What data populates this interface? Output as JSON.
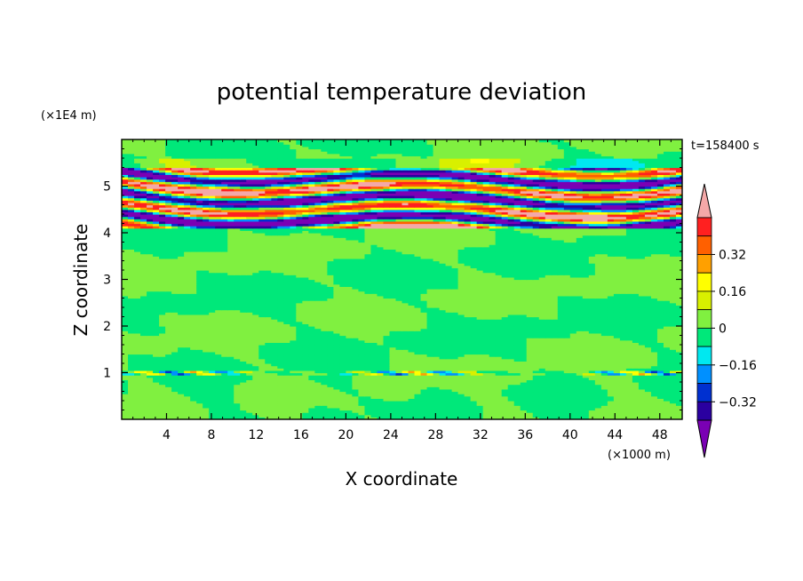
{
  "chart_data": {
    "type": "heatmap",
    "title": "potential temperature deviation",
    "xlabel": "X coordinate",
    "ylabel": "Z coordinate",
    "x_unit": "(×1000 m)",
    "y_unit": "(×1E4 m)",
    "time_label": "t=158400 s",
    "xlim": [
      0,
      50
    ],
    "ylim": [
      0,
      6
    ],
    "x_ticks": [
      4,
      8,
      12,
      16,
      20,
      24,
      28,
      32,
      36,
      40,
      44,
      48
    ],
    "y_ticks": [
      1,
      2,
      3,
      4,
      5
    ],
    "x_tick_labels": [
      "4",
      "8",
      "12",
      "16",
      "20",
      "24",
      "28",
      "32",
      "36",
      "40",
      "44",
      "48"
    ],
    "y_tick_labels": [
      "1",
      "2",
      "3",
      "4",
      "5"
    ],
    "colorbar": {
      "levels": [
        -0.48,
        -0.4,
        -0.32,
        -0.24,
        -0.16,
        -0.08,
        0,
        0.08,
        0.16,
        0.24,
        0.32,
        0.4,
        0.48
      ],
      "labeled_levels": [
        0.32,
        0.16,
        0,
        -0.16,
        -0.32
      ],
      "labels": [
        "0.32",
        "0.16",
        "0",
        "−0.16",
        "−0.32"
      ],
      "colors_low_to_high": [
        "#7a00b4",
        "#2a00a0",
        "#0030d0",
        "#0090ff",
        "#00e8f0",
        "#00e87a",
        "#80f040",
        "#d8f000",
        "#ffff00",
        "#ffa000",
        "#ff6000",
        "#ff2020",
        "#f4a8a8"
      ]
    },
    "bands": [
      {
        "z_range": [
          0,
          0.95
        ],
        "value_range": [
          -0.08,
          0.08
        ],
        "description": "mostly near zero"
      },
      {
        "z_range": [
          0.95,
          1.05
        ],
        "value_range": [
          -0.32,
          0.32
        ],
        "description": "thin disturbed layer with strong anomalies"
      },
      {
        "z_range": [
          1.05,
          4.1
        ],
        "value_range": [
          -0.08,
          0.08
        ],
        "description": "banded near-zero field"
      },
      {
        "z_range": [
          4.1,
          5.4
        ],
        "value_range": [
          -0.48,
          0.48
        ],
        "description": "strong alternating positive/negative layers"
      },
      {
        "z_range": [
          5.4,
          6.0
        ],
        "value_range": [
          -0.08,
          0.08
        ],
        "description": "near zero above"
      }
    ]
  }
}
